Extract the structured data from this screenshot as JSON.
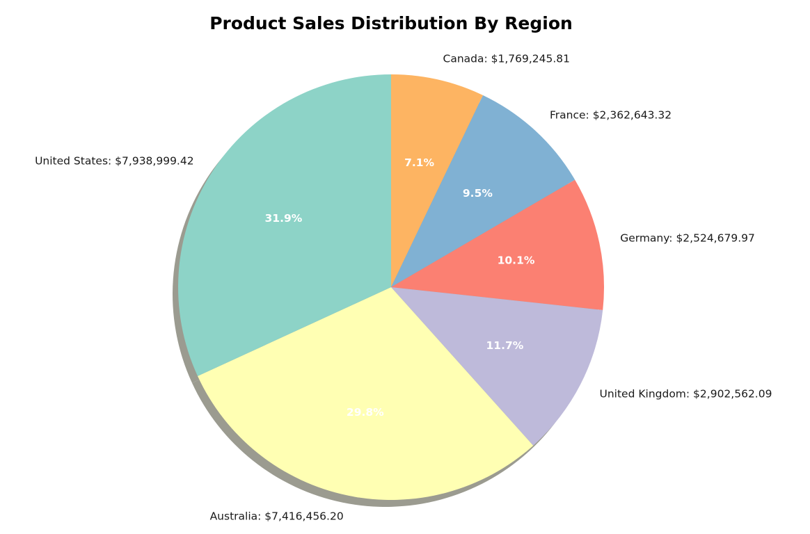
{
  "chart_data": {
    "type": "pie",
    "title": "Product Sales Distribution By Region",
    "start_angle_deg": 90,
    "direction": "clockwise",
    "shadow": true,
    "slices": [
      {
        "label": "Canada",
        "value_text": "$1,769,245.81",
        "value": 1769245.81,
        "percent": "7.1%",
        "color": "#fdb462"
      },
      {
        "label": "France",
        "value_text": "$2,362,643.32",
        "value": 2362643.32,
        "percent": "9.5%",
        "color": "#80b1d3"
      },
      {
        "label": "Germany",
        "value_text": "$2,524,679.97",
        "value": 2524679.97,
        "percent": "10.1%",
        "color": "#fb8072"
      },
      {
        "label": "United Kingdom",
        "value_text": "$2,902,562.09",
        "value": 2902562.09,
        "percent": "11.7%",
        "color": "#bebada"
      },
      {
        "label": "Australia",
        "value_text": "$7,416,456.20",
        "value": 7416456.2,
        "percent": "29.8%",
        "color": "#ffffb3"
      },
      {
        "label": "United States",
        "value_text": "$7,938,999.42",
        "value": 7938999.42,
        "percent": "31.9%",
        "color": "#8dd3c7"
      }
    ]
  }
}
